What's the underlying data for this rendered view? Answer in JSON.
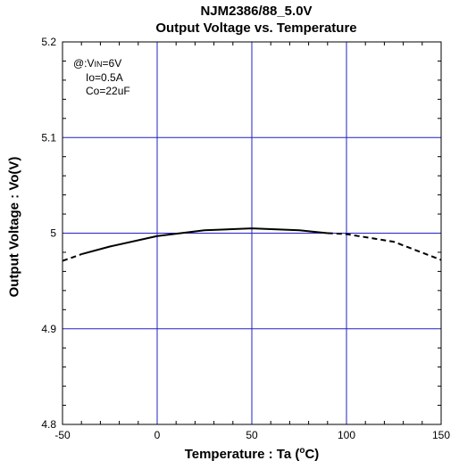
{
  "chart_data": {
    "type": "line",
    "title": "NJM2386/88_5.0V",
    "subtitle": "Output Voltage vs. Temperature",
    "xlabel_prefix": "Temperature : Ta (",
    "xlabel_degree": "o",
    "xlabel_suffix": "C)",
    "ylabel": "Output Voltage : Vo(V)",
    "xlim": [
      -50,
      150
    ],
    "ylim": [
      4.8,
      5.2
    ],
    "x_ticks": [
      "-50",
      "0",
      "50",
      "100",
      "150"
    ],
    "y_ticks": [
      "4.8",
      "4.9",
      "5",
      "5.1",
      "5.2"
    ],
    "grid": true,
    "annotation": {
      "line1_prefix": "@:V",
      "line1_sub": "IN",
      "line1_suffix": "=6V",
      "line2": "Io=0.5A",
      "line3": "Co=22uF"
    },
    "series": [
      {
        "style": "solid",
        "x": [
          -40,
          -25,
          0,
          25,
          50,
          75,
          90
        ],
        "y": [
          4.978,
          4.986,
          4.997,
          5.003,
          5.005,
          5.003,
          5.0
        ]
      },
      {
        "style": "dashed",
        "x": [
          -50,
          -40
        ],
        "y": [
          4.971,
          4.978
        ]
      },
      {
        "style": "dashed",
        "x": [
          90,
          100,
          125,
          150
        ],
        "y": [
          5.0,
          4.999,
          4.991,
          4.972
        ]
      }
    ]
  }
}
